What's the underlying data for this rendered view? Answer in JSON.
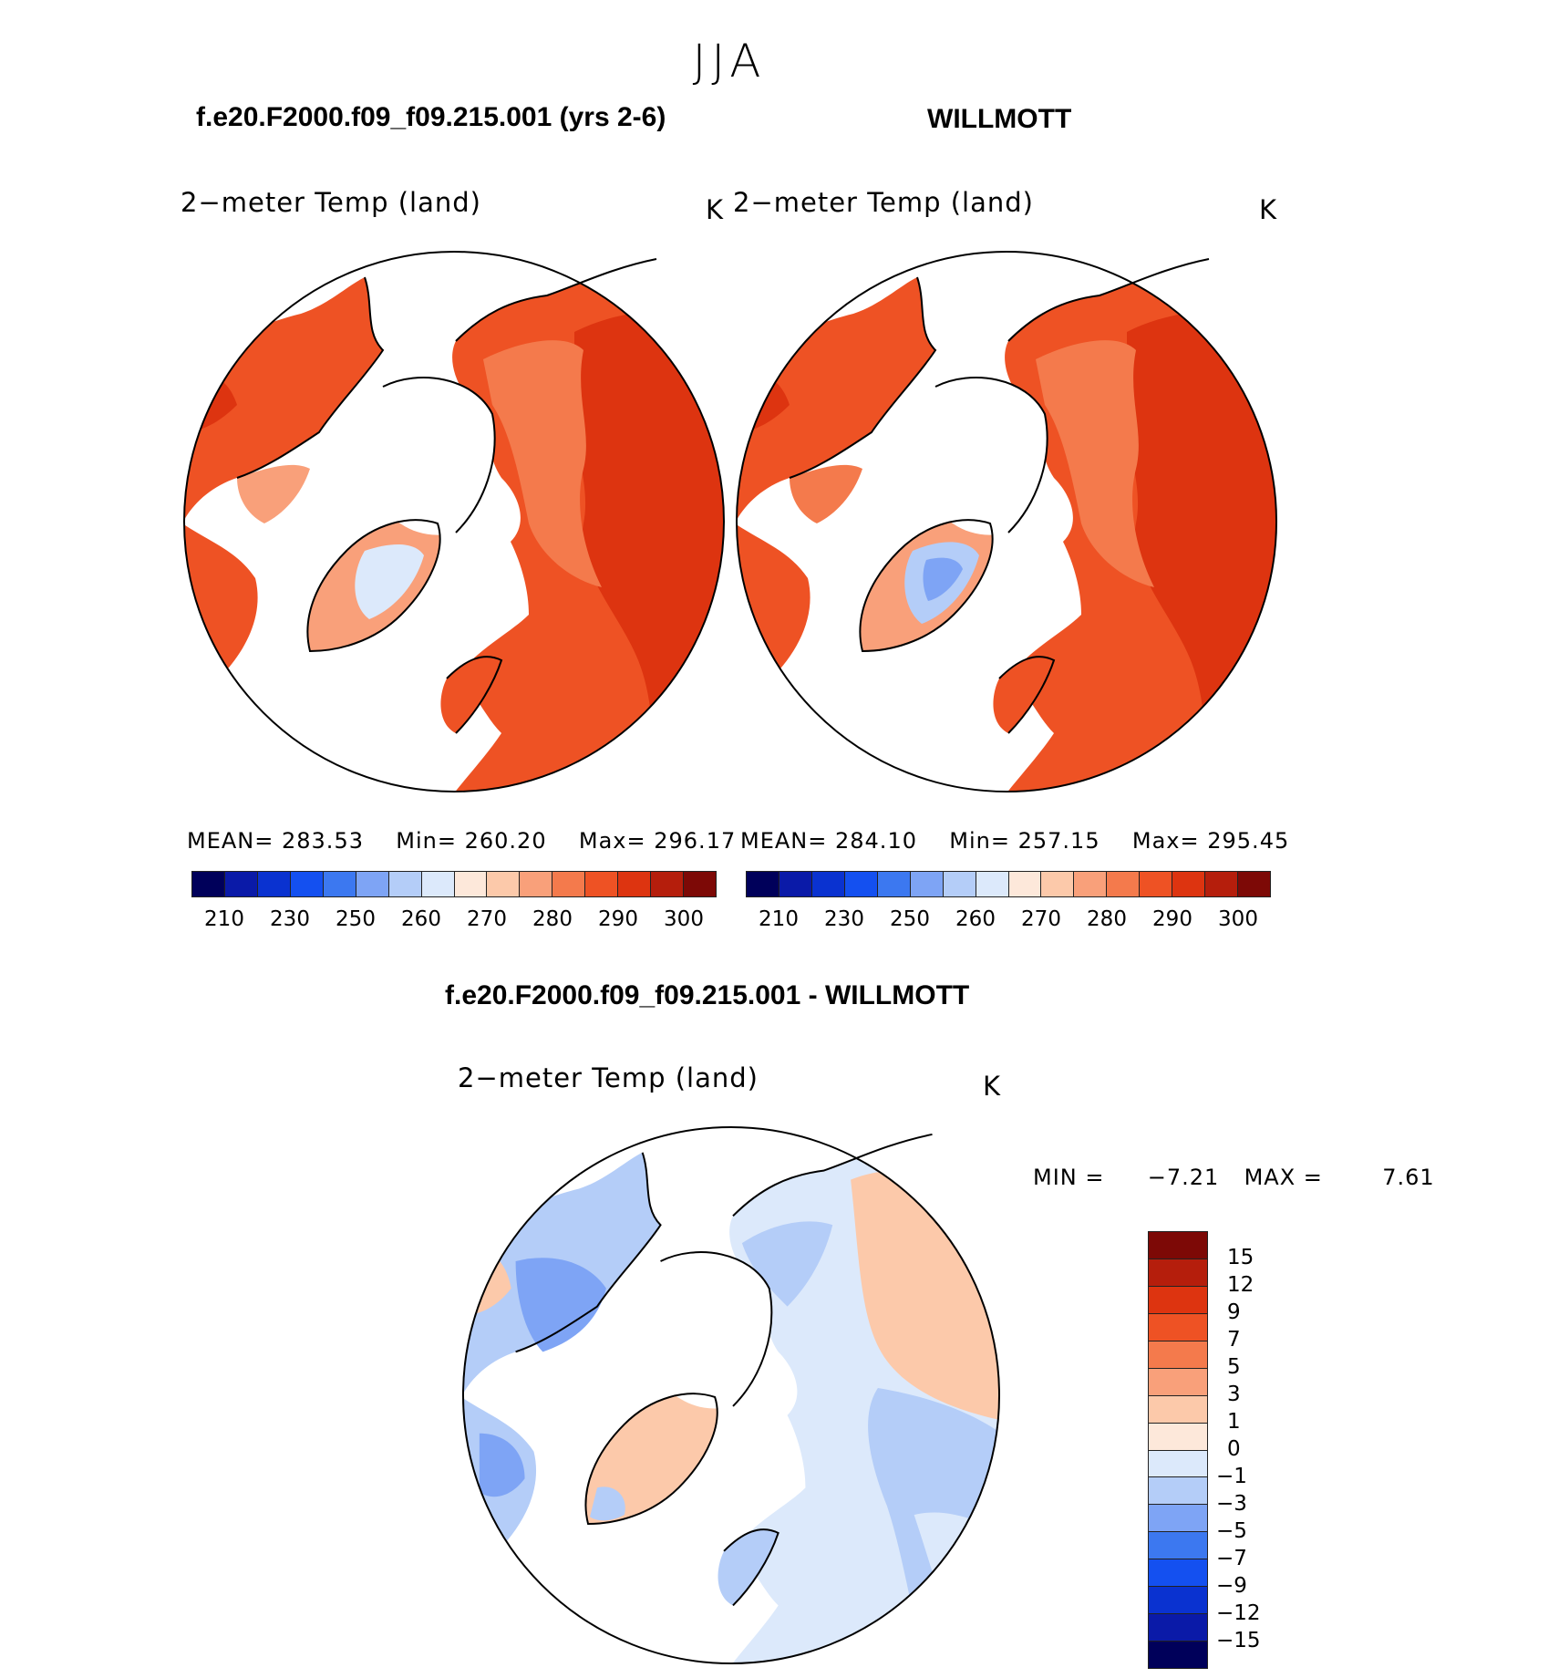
{
  "season": "JJA",
  "left_panel": {
    "case_title": "f.e20.F2000.f09_f09.215.001 (yrs 2-6)",
    "variable": "2−meter Temp (land)",
    "units": "K",
    "mean_label": "MEAN=",
    "mean_value": "283.53",
    "min_label": "Min=",
    "min_value": "260.20",
    "max_label": "Max=",
    "max_value": "296.17"
  },
  "right_panel": {
    "case_title": "WILLMOTT",
    "variable": "2−meter Temp (land)",
    "units": "K",
    "mean_label": "MEAN=",
    "mean_value": "284.10",
    "min_label": "Min=",
    "min_value": "257.15",
    "max_label": "Max=",
    "max_value": "295.45"
  },
  "diff_panel": {
    "case_title": "f.e20.F2000.f09_f09.215.001 - WILLMOTT",
    "variable": "2−meter Temp (land)",
    "units": "K",
    "min_label": "MIN =",
    "min_value": "−7.21",
    "max_label": "MAX =",
    "max_value": "7.61"
  },
  "abs_colorbar": {
    "ticks": [
      "210",
      "230",
      "250",
      "260",
      "270",
      "280",
      "290",
      "300"
    ],
    "colors": [
      "#00005a",
      "#0a1aa8",
      "#0a32d0",
      "#1450f0",
      "#3c78f0",
      "#7ea4f5",
      "#b4cdf8",
      "#dce9fb",
      "#fde8da",
      "#fcc9aa",
      "#f9a07a",
      "#f47a4c",
      "#ee5224",
      "#dd3410",
      "#b51e0c",
      "#7d0906"
    ]
  },
  "diff_colorbar": {
    "ticks": [
      "15",
      "12",
      "9",
      "7",
      "5",
      "3",
      "1",
      "0",
      "−1",
      "−3",
      "−5",
      "−7",
      "−9",
      "−12",
      "−15"
    ],
    "colors": [
      "#7d0906",
      "#b51e0c",
      "#dd3410",
      "#ee5224",
      "#f47a4c",
      "#f9a07a",
      "#fcc9aa",
      "#fde8da",
      "#dce9fb",
      "#b4cdf8",
      "#7ea4f5",
      "#3c78f0",
      "#1450f0",
      "#0a32d0",
      "#0a1aa8",
      "#00005a"
    ]
  },
  "map_colors": {
    "land_abs_dark": "#dd3410",
    "land_abs": "#ee5224",
    "land_abs_light": "#f47a4c",
    "land_abs_pale": "#f9a07a",
    "greenland_ice": "#dce9fb",
    "diff_warm": "#fcc9aa",
    "diff_neutral": "#dce9fb",
    "diff_cool": "#b4cdf8",
    "diff_cold": "#7ea4f5"
  }
}
